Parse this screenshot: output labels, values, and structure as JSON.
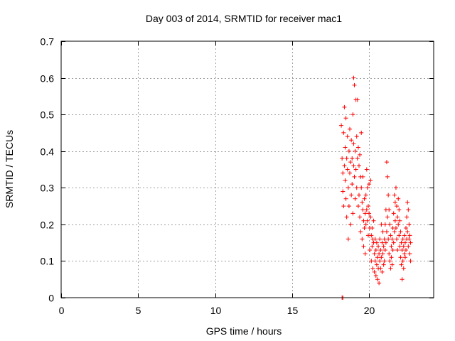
{
  "chart_data": {
    "type": "scatter",
    "title": "Day 003 of 2014, SRMTID for receiver mac1",
    "xlabel": "GPS time / hours",
    "ylabel": "SRMTID / TECUs",
    "xlim": [
      0,
      24.2
    ],
    "ylim": [
      0,
      0.7
    ],
    "xticks": [
      0,
      5,
      10,
      15,
      20
    ],
    "yticks": [
      0,
      0.1,
      0.2,
      0.3,
      0.4,
      0.5,
      0.6,
      0.7
    ],
    "xtick_labels": [
      "0",
      "5",
      "10",
      "15",
      "20"
    ],
    "ytick_labels": [
      "0",
      "0.1",
      "0.2",
      "0.3",
      "0.4",
      "0.5",
      "0.6",
      "0.7"
    ],
    "grid": true,
    "marker": "+",
    "colors": {
      "series": "#ff0000",
      "grid": "#a0a0a0",
      "axis": "#000000"
    },
    "series": [
      {
        "name": "SRMTID",
        "points": [
          [
            18.25,
            0.0
          ],
          [
            18.3,
            0.0
          ],
          [
            18.2,
            0.47
          ],
          [
            18.25,
            0.38
          ],
          [
            18.3,
            0.34
          ],
          [
            18.3,
            0.29
          ],
          [
            18.35,
            0.45
          ],
          [
            18.35,
            0.25
          ],
          [
            18.4,
            0.52
          ],
          [
            18.4,
            0.36
          ],
          [
            18.45,
            0.32
          ],
          [
            18.45,
            0.41
          ],
          [
            18.5,
            0.49
          ],
          [
            18.5,
            0.27
          ],
          [
            18.55,
            0.38
          ],
          [
            18.55,
            0.22
          ],
          [
            18.6,
            0.35
          ],
          [
            18.6,
            0.44
          ],
          [
            18.65,
            0.3
          ],
          [
            18.65,
            0.16
          ],
          [
            18.7,
            0.4
          ],
          [
            18.7,
            0.25
          ],
          [
            18.75,
            0.46
          ],
          [
            18.75,
            0.34
          ],
          [
            18.8,
            0.37
          ],
          [
            18.8,
            0.2
          ],
          [
            18.85,
            0.43
          ],
          [
            18.85,
            0.28
          ],
          [
            18.9,
            0.38
          ],
          [
            18.9,
            0.31
          ],
          [
            18.95,
            0.5
          ],
          [
            18.95,
            0.23
          ],
          [
            19.0,
            0.42
          ],
          [
            19.0,
            0.36
          ],
          [
            19.0,
            0.6
          ],
          [
            19.05,
            0.58
          ],
          [
            19.05,
            0.33
          ],
          [
            19.1,
            0.4
          ],
          [
            19.1,
            0.27
          ],
          [
            19.15,
            0.54
          ],
          [
            19.15,
            0.35
          ],
          [
            19.2,
            0.44
          ],
          [
            19.2,
            0.3
          ],
          [
            19.25,
            0.54
          ],
          [
            19.25,
            0.38
          ],
          [
            19.3,
            0.41
          ],
          [
            19.3,
            0.25
          ],
          [
            19.35,
            0.36
          ],
          [
            19.35,
            0.28
          ],
          [
            19.4,
            0.39
          ],
          [
            19.4,
            0.22
          ],
          [
            19.45,
            0.33
          ],
          [
            19.45,
            0.18
          ],
          [
            19.5,
            0.3
          ],
          [
            19.5,
            0.45
          ],
          [
            19.55,
            0.26
          ],
          [
            19.55,
            0.16
          ],
          [
            19.6,
            0.24
          ],
          [
            19.6,
            0.33
          ],
          [
            19.65,
            0.21
          ],
          [
            19.65,
            0.14
          ],
          [
            19.7,
            0.27
          ],
          [
            19.7,
            0.19
          ],
          [
            19.75,
            0.23
          ],
          [
            19.75,
            0.12
          ],
          [
            19.8,
            0.28
          ],
          [
            19.8,
            0.2
          ],
          [
            19.85,
            0.24
          ],
          [
            19.85,
            0.35
          ],
          [
            19.9,
            0.21
          ],
          [
            19.9,
            0.3
          ],
          [
            19.95,
            0.25
          ],
          [
            19.95,
            0.17
          ],
          [
            20.0,
            0.23
          ],
          [
            20.0,
            0.31
          ],
          [
            20.05,
            0.19
          ],
          [
            20.05,
            0.13
          ],
          [
            20.1,
            0.22
          ],
          [
            20.1,
            0.32
          ],
          [
            20.15,
            0.17
          ],
          [
            20.15,
            0.1
          ],
          [
            20.2,
            0.19
          ],
          [
            20.2,
            0.14
          ],
          [
            20.25,
            0.16
          ],
          [
            20.25,
            0.08
          ],
          [
            20.3,
            0.15
          ],
          [
            20.3,
            0.21
          ],
          [
            20.35,
            0.12
          ],
          [
            20.35,
            0.07
          ],
          [
            20.4,
            0.16
          ],
          [
            20.4,
            0.1
          ],
          [
            20.45,
            0.13
          ],
          [
            20.45,
            0.06
          ],
          [
            20.5,
            0.15
          ],
          [
            20.5,
            0.09
          ],
          [
            20.55,
            0.11
          ],
          [
            20.55,
            0.05
          ],
          [
            20.6,
            0.14
          ],
          [
            20.6,
            0.08
          ],
          [
            20.65,
            0.12
          ],
          [
            20.65,
            0.04
          ],
          [
            20.7,
            0.1
          ],
          [
            20.7,
            0.16
          ],
          [
            20.75,
            0.08
          ],
          [
            20.75,
            0.13
          ],
          [
            20.8,
            0.2
          ],
          [
            20.8,
            0.11
          ],
          [
            20.85,
            0.15
          ],
          [
            20.85,
            0.07
          ],
          [
            20.9,
            0.18
          ],
          [
            20.9,
            0.12
          ],
          [
            20.95,
            0.14
          ],
          [
            20.95,
            0.09
          ],
          [
            21.0,
            0.16
          ],
          [
            21.0,
            0.1
          ],
          [
            21.05,
            0.2
          ],
          [
            21.05,
            0.13
          ],
          [
            21.1,
            0.24
          ],
          [
            21.1,
            0.15
          ],
          [
            21.15,
            0.37
          ],
          [
            21.15,
            0.18
          ],
          [
            21.2,
            0.33
          ],
          [
            21.2,
            0.22
          ],
          [
            21.25,
            0.28
          ],
          [
            21.25,
            0.16
          ],
          [
            21.3,
            0.24
          ],
          [
            21.3,
            0.12
          ],
          [
            21.35,
            0.2
          ],
          [
            21.35,
            0.1
          ],
          [
            21.4,
            0.17
          ],
          [
            21.4,
            0.08
          ],
          [
            21.45,
            0.14
          ],
          [
            21.45,
            0.11
          ],
          [
            21.5,
            0.16
          ],
          [
            21.5,
            0.09
          ],
          [
            21.55,
            0.19
          ],
          [
            21.55,
            0.13
          ],
          [
            21.6,
            0.23
          ],
          [
            21.6,
            0.15
          ],
          [
            21.65,
            0.28
          ],
          [
            21.65,
            0.18
          ],
          [
            21.7,
            0.26
          ],
          [
            21.7,
            0.21
          ],
          [
            21.75,
            0.3
          ],
          [
            21.75,
            0.19
          ],
          [
            21.8,
            0.25
          ],
          [
            21.8,
            0.16
          ],
          [
            21.85,
            0.22
          ],
          [
            21.85,
            0.13
          ],
          [
            21.9,
            0.27
          ],
          [
            21.9,
            0.2
          ],
          [
            21.95,
            0.24
          ],
          [
            21.95,
            0.17
          ],
          [
            22.0,
            0.21
          ],
          [
            22.0,
            0.14
          ],
          [
            22.05,
            0.18
          ],
          [
            22.05,
            0.11
          ],
          [
            22.1,
            0.15
          ],
          [
            22.1,
            0.09
          ],
          [
            22.15,
            0.13
          ],
          [
            22.15,
            0.05
          ],
          [
            22.2,
            0.16
          ],
          [
            22.2,
            0.1
          ],
          [
            22.25,
            0.14
          ],
          [
            22.25,
            0.08
          ],
          [
            22.3,
            0.17
          ],
          [
            22.3,
            0.12
          ],
          [
            22.35,
            0.15
          ],
          [
            22.35,
            0.11
          ],
          [
            22.4,
            0.19
          ],
          [
            22.4,
            0.13
          ],
          [
            22.45,
            0.22
          ],
          [
            22.45,
            0.16
          ],
          [
            22.5,
            0.26
          ],
          [
            22.5,
            0.18
          ],
          [
            22.55,
            0.24
          ],
          [
            22.55,
            0.14
          ],
          [
            22.6,
            0.2
          ],
          [
            22.6,
            0.16
          ],
          [
            22.65,
            0.17
          ],
          [
            22.65,
            0.12
          ],
          [
            22.7,
            0.15
          ],
          [
            22.7,
            0.1
          ]
        ]
      }
    ]
  }
}
